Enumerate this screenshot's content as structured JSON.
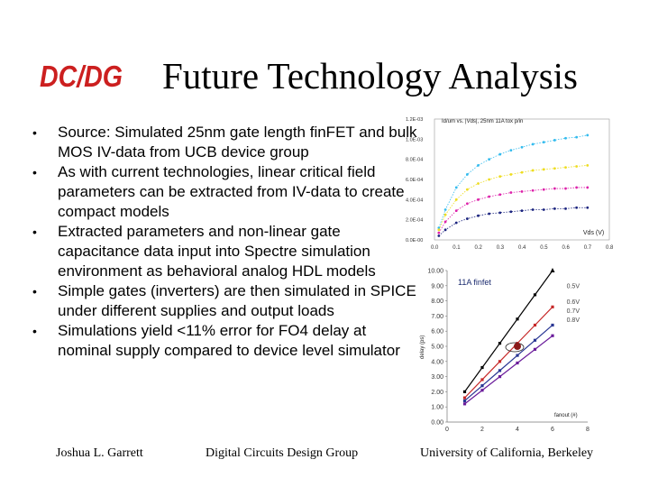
{
  "slide": {
    "logo_text": "DC/DG",
    "title": "Future Technology Analysis",
    "bullets": [
      "Source: Simulated 25nm gate length finFET and bulk MOS IV-data from UCB device group",
      "As with current technologies, linear critical field parameters can be extracted from IV-data to create compact models",
      "Extracted parameters and non-linear gate capacitance data input into Spectre simulation environment as behavioral analog HDL models",
      "Simple gates (inverters) are then simulated in SPICE under different supplies and output loads",
      "Simulations yield <11% error for FO4 delay at nominal supply compared to device level simulator"
    ],
    "bullet_glyph": "•",
    "footer": {
      "left": "Joshua L. Garrett",
      "center": "Digital Circuits Design Group",
      "right": "University of California, Berkeley"
    },
    "colors": {
      "logo": "#cc1f1f"
    }
  },
  "chart_data": [
    {
      "type": "scatter",
      "title": "Id/um vs. |Vds|, 25nm 11A tox p/in",
      "xlabel": "Vds (V)",
      "ylabel": "",
      "xlim": [
        0,
        0.8
      ],
      "ylim": [
        0,
        0.0012
      ],
      "x_ticks": [
        "0.0",
        "0.1",
        "0.2",
        "0.3",
        "0.4",
        "0.5",
        "0.6",
        "0.7",
        "0.8"
      ],
      "y_ticks": [
        "0.0E-00",
        "2.0E-04",
        "4.0E-04",
        "6.0E-04",
        "8.0E-04",
        "1.0E-03",
        "1.2E-03"
      ],
      "x": [
        0.02,
        0.05,
        0.1,
        0.15,
        0.2,
        0.25,
        0.3,
        0.35,
        0.4,
        0.45,
        0.5,
        0.55,
        0.6,
        0.65,
        0.7
      ],
      "series": [
        {
          "color": "#33bbee",
          "values": [
            0.00012,
            0.0003,
            0.00052,
            0.00065,
            0.00074,
            0.0008,
            0.00085,
            0.00089,
            0.00092,
            0.00095,
            0.00097,
            0.00099,
            0.00101,
            0.00102,
            0.00104
          ]
        },
        {
          "color": "#eedd22",
          "values": [
            0.0001,
            0.00025,
            0.0004,
            0.0005,
            0.00056,
            0.0006,
            0.00063,
            0.00065,
            0.00067,
            0.00069,
            0.0007,
            0.00071,
            0.00072,
            0.00073,
            0.00074
          ]
        },
        {
          "color": "#dd22aa",
          "values": [
            7e-05,
            0.00018,
            0.00029,
            0.00036,
            0.0004,
            0.00043,
            0.00045,
            0.00047,
            0.00048,
            0.00049,
            0.0005,
            0.00051,
            0.00051,
            0.00052,
            0.00052
          ]
        },
        {
          "color": "#1a237e",
          "values": [
            4e-05,
            0.0001,
            0.00017,
            0.00021,
            0.00024,
            0.00026,
            0.00027,
            0.00028,
            0.00029,
            0.0003,
            0.0003,
            0.00031,
            0.00031,
            0.00032,
            0.00032
          ]
        }
      ]
    },
    {
      "type": "line",
      "title": "11A finfet",
      "xlabel": "fanout (#)",
      "ylabel": "delay (ps)",
      "xlim": [
        0,
        8
      ],
      "ylim": [
        0,
        10
      ],
      "x_ticks": [
        "0",
        "2",
        "4",
        "6",
        "8"
      ],
      "y_ticks": [
        "0.00",
        "1.00",
        "2.00",
        "3.00",
        "4.00",
        "5.00",
        "6.00",
        "7.00",
        "8.00",
        "9.00",
        "10.00"
      ],
      "x": [
        1,
        2,
        3,
        4,
        5,
        6
      ],
      "series": [
        {
          "name": "0.5V",
          "color": "#000000",
          "values": [
            2.0,
            3.6,
            5.2,
            6.8,
            8.4,
            10.0
          ]
        },
        {
          "name": "0.6V",
          "color": "#c62828",
          "values": [
            1.6,
            2.8,
            4.0,
            5.2,
            6.4,
            7.6
          ]
        },
        {
          "name": "0.7V",
          "color": "#283593",
          "values": [
            1.4,
            2.4,
            3.4,
            4.4,
            5.4,
            6.4
          ]
        },
        {
          "name": "0.8V",
          "color": "#6a1b9a",
          "values": [
            1.2,
            2.1,
            3.0,
            3.9,
            4.8,
            5.7
          ]
        }
      ],
      "highlight_point": {
        "x": 4,
        "y": 5.0,
        "color": "#8b1a1a"
      }
    }
  ]
}
